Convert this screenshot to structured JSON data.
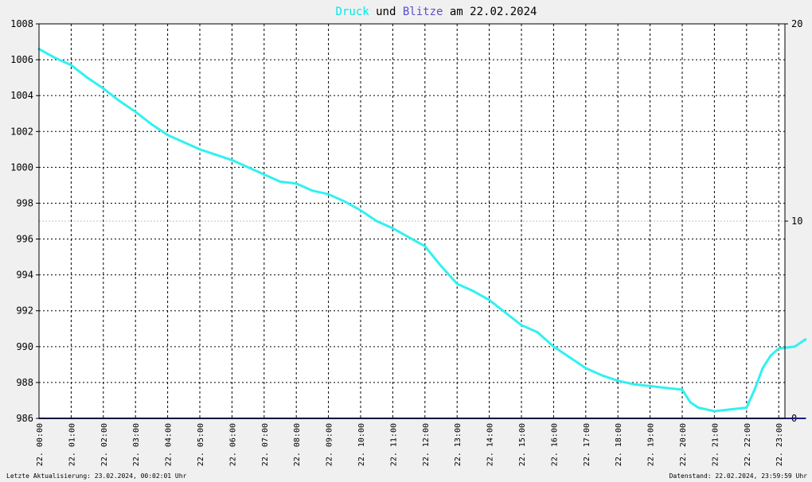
{
  "title": {
    "part1": "Druck",
    "part2": " und ",
    "part3": "Blitze",
    "part4": " am 22.02.2024",
    "color1": "#00e8e8",
    "color2": "#000000",
    "color3": "#5a4fc8",
    "color4": "#000000"
  },
  "footer": {
    "left": "Letzte Aktualisierung: 23.02.2024, 00:02:01 Uhr",
    "right": "Datenstand: 22.02.2024, 23:59:59 Uhr"
  },
  "colors": {
    "pressure": "#33f0f0",
    "lightning": "#1a1a7a",
    "grid": "#000000",
    "background": "#ffffff",
    "threshold": "#c0c0c0"
  },
  "chart_data": {
    "type": "line",
    "title": "Druck und Blitze am 22.02.2024",
    "xlabel": "",
    "ylabel": "",
    "y_left_range": [
      986,
      1008
    ],
    "y_right_range": [
      0,
      20
    ],
    "y_left_ticks": [
      "1008",
      "1006",
      "1004",
      "1002",
      "1000",
      "998",
      "996",
      "994",
      "992",
      "990",
      "988",
      "986"
    ],
    "y_right_ticks": [
      "20",
      "10",
      "0"
    ],
    "x_ticks": [
      "22. 00:00",
      "22. 01:00",
      "22. 02:00",
      "22. 03:00",
      "22. 04:00",
      "22. 05:00",
      "22. 06:00",
      "22. 07:00",
      "22. 08:00",
      "22. 09:00",
      "22. 10:00",
      "22. 11:00",
      "22. 12:00",
      "22. 13:00",
      "22. 14:00",
      "22. 15:00",
      "22. 16:00",
      "22. 17:00",
      "22. 18:00",
      "22. 19:00",
      "22. 20:00",
      "22. 21:00",
      "22. 22:00",
      "22. 23:00"
    ],
    "grid": true,
    "series": [
      {
        "name": "Druck",
        "axis": "left",
        "x": [
          0.0,
          0.5,
          1.0,
          1.5,
          2.0,
          2.5,
          3.0,
          3.5,
          4.0,
          4.5,
          5.0,
          5.5,
          6.0,
          6.5,
          7.0,
          7.5,
          8.0,
          8.5,
          9.0,
          9.5,
          10.0,
          10.5,
          11.0,
          11.5,
          12.0,
          12.5,
          13.0,
          13.5,
          14.0,
          14.5,
          15.0,
          15.5,
          16.0,
          16.5,
          17.0,
          17.5,
          18.0,
          18.5,
          19.0,
          19.5,
          20.0,
          20.25,
          20.5,
          21.0,
          21.5,
          22.0,
          22.25,
          22.5,
          22.75,
          23.0,
          23.5,
          23.83
        ],
        "y": [
          1006.6,
          1006.1,
          1005.7,
          1005.0,
          1004.4,
          1003.7,
          1003.1,
          1002.4,
          1001.8,
          1001.4,
          1001.0,
          1000.7,
          1000.4,
          1000.0,
          999.6,
          999.2,
          999.1,
          998.7,
          998.5,
          998.1,
          997.6,
          997.0,
          996.6,
          996.1,
          995.6,
          994.5,
          993.5,
          993.1,
          992.6,
          991.9,
          991.2,
          990.8,
          990.0,
          989.4,
          988.8,
          988.4,
          988.1,
          987.9,
          987.8,
          987.7,
          987.6,
          986.9,
          986.6,
          986.4,
          986.5,
          986.6,
          987.6,
          988.8,
          989.5,
          989.9,
          990.0,
          990.4
        ]
      },
      {
        "name": "Blitze",
        "axis": "right",
        "x": [
          0,
          23.83
        ],
        "y": [
          0,
          0
        ]
      }
    ]
  }
}
